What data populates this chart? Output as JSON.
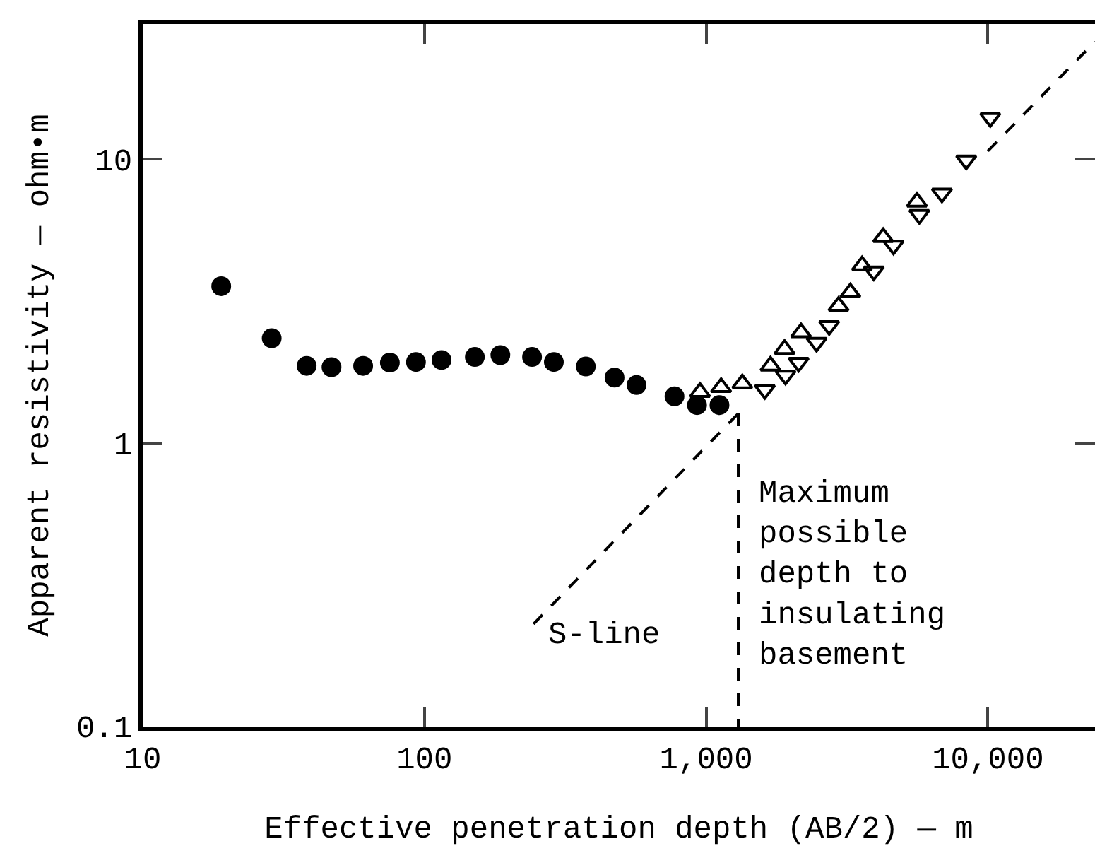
{
  "chart_data": {
    "type": "scatter",
    "xlabel": "Effective penetration depth (AB/2) — m",
    "ylabel": "Apparent resistivity — ohm•m",
    "log": "xy",
    "xlim": [
      10,
      24000
    ],
    "ylim": [
      0.1,
      30
    ],
    "xticks": [
      10,
      100,
      {
        "value": 1000,
        "label": "1,000"
      },
      {
        "value": 10000,
        "label": "10,000"
      }
    ],
    "yticks": [
      0.1,
      1,
      10
    ],
    "grid": false,
    "series": [
      {
        "color": "#000000",
        "marker": "circle",
        "x": [
          19,
          28.7,
          38.2,
          46.8,
          60.6,
          75.4,
          93.3,
          115,
          151,
          186,
          241,
          288,
          374,
          473,
          566,
          772,
          928,
          1115
        ],
        "values": [
          3.57,
          2.34,
          1.87,
          1.85,
          1.87,
          1.92,
          1.93,
          1.96,
          2.01,
          2.04,
          2.01,
          1.93,
          1.86,
          1.7,
          1.6,
          1.46,
          1.36,
          1.36
        ]
      },
      {
        "color": "#000000",
        "marker": "triangle-open",
        "x": [
          951,
          1130,
          1344,
          1692,
          1898,
          2172,
          2951,
          3249,
          3575,
          4249,
          5600
        ],
        "values": [
          1.51,
          1.57,
          1.62,
          1.87,
          2.14,
          2.45,
          3.04,
          3.39,
          4.22,
          5.31,
          7.08
        ]
      },
      {
        "color": "#000000",
        "marker": "triangle-down-open",
        "x": [
          1616,
          1913,
          2130,
          2465,
          2733,
          3936,
          4624,
          5710,
          6870,
          8380,
          10200
        ],
        "values": [
          1.54,
          1.73,
          1.92,
          2.26,
          2.59,
          4.03,
          4.97,
          6.38,
          7.59,
          9.93,
          14.0
        ]
      },
      {
        "type": "line",
        "color": "#000000",
        "line_style": "dashed",
        "marker": "none",
        "x": [
          244,
          1300
        ],
        "values": [
          0.23,
          1.27
        ]
      },
      {
        "type": "line",
        "color": "#000000",
        "line_style": "dashed",
        "marker": "none",
        "x": [
          1300,
          1300
        ],
        "values": [
          1.27,
          0.1
        ]
      },
      {
        "type": "line",
        "color": "#000000",
        "line_style": "dashed",
        "marker": "none",
        "x": [
          10000,
          24000
        ],
        "values": [
          10.7,
          26
        ]
      }
    ],
    "annotations": [
      "S-line",
      "Maximum\npossible\ndepth to\ninsulating\nbasement"
    ]
  }
}
